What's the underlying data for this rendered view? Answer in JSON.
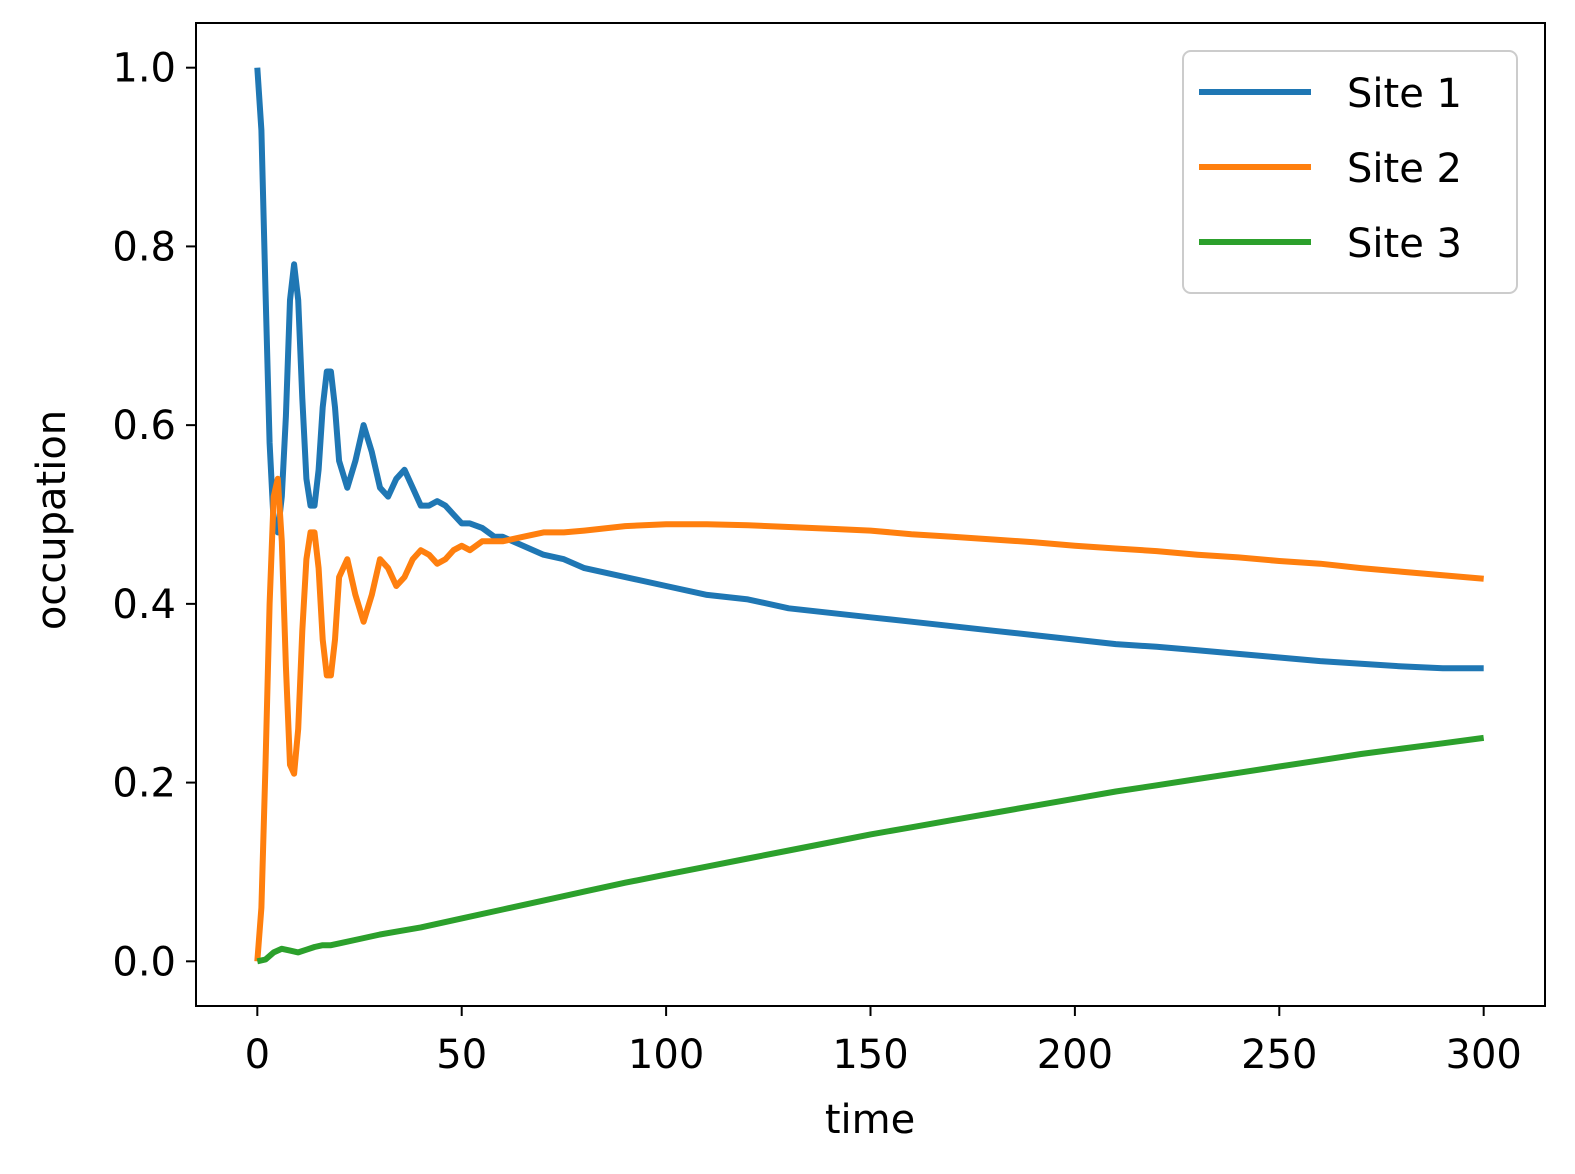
{
  "chart_data": {
    "type": "line",
    "title": "",
    "xlabel": "time",
    "ylabel": "occupation",
    "xlim": [
      -15,
      315
    ],
    "ylim": [
      -0.05,
      1.05
    ],
    "xticks": [
      0,
      50,
      100,
      150,
      200,
      250,
      300
    ],
    "xtick_labels": [
      "0",
      "50",
      "100",
      "150",
      "200",
      "250",
      "300"
    ],
    "yticks": [
      0.0,
      0.2,
      0.4,
      0.6,
      0.8,
      1.0
    ],
    "ytick_labels": [
      "0.0",
      "0.2",
      "0.4",
      "0.6",
      "0.8",
      "1.0"
    ],
    "grid": false,
    "legend_position": "top-right",
    "series": [
      {
        "name": "Site 1",
        "color": "#1f77b4",
        "x": [
          0,
          1,
          2,
          3,
          4,
          5,
          6,
          7,
          8,
          9,
          10,
          11,
          12,
          13,
          14,
          15,
          16,
          17,
          18,
          19,
          20,
          22,
          24,
          26,
          28,
          30,
          32,
          34,
          36,
          38,
          40,
          42,
          44,
          46,
          48,
          50,
          52,
          55,
          58,
          60,
          65,
          70,
          75,
          80,
          90,
          100,
          110,
          120,
          130,
          140,
          150,
          160,
          170,
          180,
          190,
          200,
          210,
          220,
          230,
          240,
          250,
          260,
          270,
          280,
          290,
          300
        ],
        "y": [
          1.0,
          0.93,
          0.75,
          0.58,
          0.49,
          0.48,
          0.52,
          0.61,
          0.74,
          0.78,
          0.74,
          0.63,
          0.54,
          0.51,
          0.51,
          0.55,
          0.62,
          0.66,
          0.66,
          0.62,
          0.56,
          0.53,
          0.56,
          0.6,
          0.57,
          0.53,
          0.52,
          0.54,
          0.55,
          0.53,
          0.51,
          0.51,
          0.515,
          0.51,
          0.5,
          0.49,
          0.49,
          0.485,
          0.475,
          0.475,
          0.465,
          0.455,
          0.45,
          0.44,
          0.43,
          0.42,
          0.41,
          0.405,
          0.395,
          0.39,
          0.385,
          0.38,
          0.375,
          0.37,
          0.365,
          0.36,
          0.355,
          0.352,
          0.348,
          0.344,
          0.34,
          0.336,
          0.333,
          0.33,
          0.328,
          0.328
        ]
      },
      {
        "name": "Site 2",
        "color": "#ff7f0e",
        "x": [
          0,
          1,
          2,
          3,
          4,
          5,
          6,
          7,
          8,
          9,
          10,
          11,
          12,
          13,
          14,
          15,
          16,
          17,
          18,
          19,
          20,
          22,
          24,
          26,
          28,
          30,
          32,
          34,
          36,
          38,
          40,
          42,
          44,
          46,
          48,
          50,
          52,
          55,
          58,
          60,
          65,
          70,
          75,
          80,
          90,
          100,
          110,
          120,
          130,
          140,
          150,
          160,
          170,
          180,
          190,
          200,
          210,
          220,
          230,
          240,
          250,
          260,
          270,
          280,
          290,
          300
        ],
        "y": [
          0.0,
          0.06,
          0.22,
          0.4,
          0.52,
          0.54,
          0.47,
          0.33,
          0.22,
          0.21,
          0.26,
          0.37,
          0.45,
          0.48,
          0.48,
          0.44,
          0.36,
          0.32,
          0.32,
          0.36,
          0.43,
          0.45,
          0.41,
          0.38,
          0.41,
          0.45,
          0.44,
          0.42,
          0.43,
          0.45,
          0.46,
          0.455,
          0.445,
          0.45,
          0.46,
          0.465,
          0.46,
          0.47,
          0.47,
          0.47,
          0.475,
          0.48,
          0.48,
          0.482,
          0.487,
          0.489,
          0.489,
          0.488,
          0.486,
          0.484,
          0.482,
          0.478,
          0.475,
          0.472,
          0.469,
          0.465,
          0.462,
          0.459,
          0.455,
          0.452,
          0.448,
          0.445,
          0.44,
          0.436,
          0.432,
          0.428
        ]
      },
      {
        "name": "Site 3",
        "color": "#2ca02c",
        "x": [
          0,
          2,
          4,
          6,
          8,
          10,
          12,
          14,
          16,
          18,
          20,
          25,
          30,
          35,
          40,
          50,
          60,
          70,
          80,
          90,
          100,
          110,
          120,
          130,
          140,
          150,
          160,
          170,
          180,
          190,
          200,
          210,
          220,
          230,
          240,
          250,
          260,
          270,
          280,
          290,
          300
        ],
        "y": [
          0.0,
          0.002,
          0.01,
          0.014,
          0.012,
          0.01,
          0.013,
          0.016,
          0.018,
          0.018,
          0.02,
          0.025,
          0.03,
          0.034,
          0.038,
          0.048,
          0.058,
          0.068,
          0.078,
          0.088,
          0.097,
          0.106,
          0.115,
          0.124,
          0.133,
          0.142,
          0.15,
          0.158,
          0.166,
          0.174,
          0.182,
          0.19,
          0.197,
          0.204,
          0.211,
          0.218,
          0.225,
          0.232,
          0.238,
          0.244,
          0.25
        ]
      }
    ]
  }
}
